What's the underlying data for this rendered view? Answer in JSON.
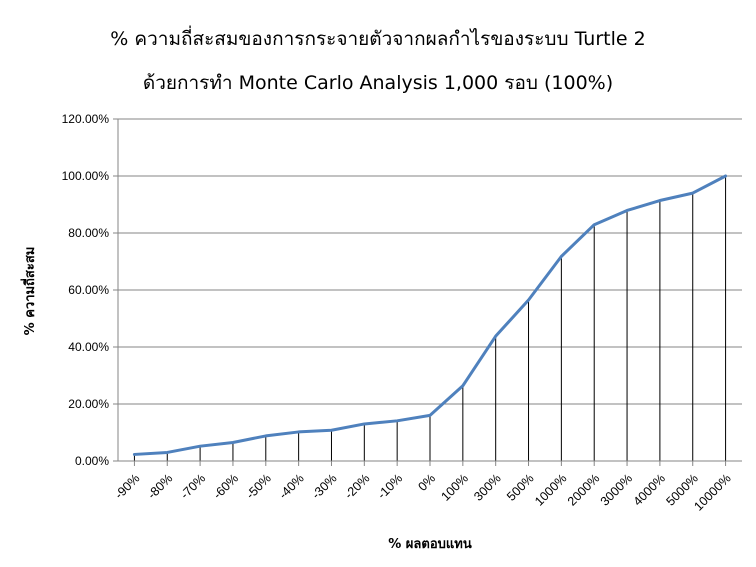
{
  "chart_data": {
    "type": "line",
    "title": "% ความถี่สะสมของการกระจายตัวจากผลกำไรของระบบ  Turtle 2",
    "subtitle": "ด้วยการทำ Monte Carlo Analysis 1,000 รอบ (100%)",
    "xlabel": "% ผลตอบแทน",
    "ylabel": "% ความถี่สะสม",
    "categories": [
      "-90%",
      "-80%",
      "-70%",
      "-60%",
      "-50%",
      "-40%",
      "-30%",
      "-20%",
      "-10%",
      "0%",
      "100%",
      "300%",
      "500%",
      "1000%",
      "2000%",
      "3000%",
      "4000%",
      "5000%",
      "10000%"
    ],
    "values": [
      2.3,
      3.0,
      5.2,
      6.5,
      8.8,
      10.2,
      10.8,
      13.0,
      14.1,
      16.0,
      26.4,
      43.8,
      56.5,
      71.8,
      82.9,
      87.9,
      91.4,
      94.0,
      100.0
    ],
    "ylim": [
      0,
      120
    ],
    "y_ticks": [
      0,
      20,
      40,
      60,
      80,
      100,
      120
    ],
    "y_tick_labels": [
      "0.00%",
      "20.00%",
      "40.00%",
      "60.00%",
      "80.00%",
      "100.00%",
      "120.00%"
    ],
    "grid": true,
    "drop_lines": true,
    "legend": "none",
    "line_color": "#4F81BD",
    "grid_color": "#868686",
    "drop_line_color": "#000000"
  }
}
